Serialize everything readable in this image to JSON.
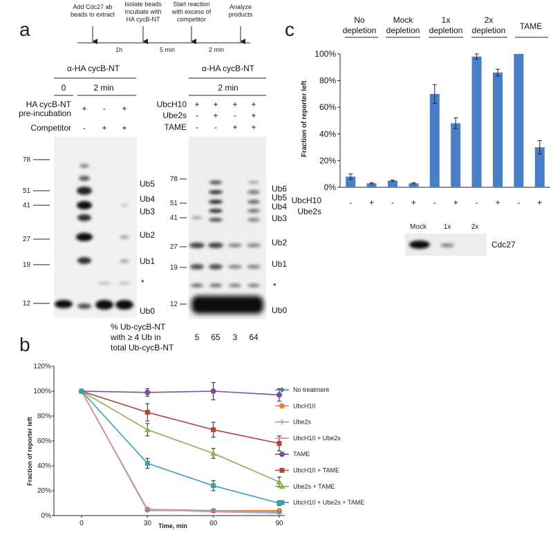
{
  "panels": {
    "a": "a",
    "b": "b",
    "c": "c"
  },
  "timeline": {
    "steps": [
      "Add Cdc27 ab",
      "beads to extract",
      "Isolate beads",
      "Incubate with",
      "HA cycB-NT",
      "Start reaction",
      "with excess of",
      "competitor",
      "Analyze",
      "products"
    ],
    "intervals": [
      "1h",
      "5 min",
      "2 min"
    ]
  },
  "blot_left": {
    "title": "α-HA cycB-NT",
    "time_labels": [
      "0",
      "2 min"
    ],
    "row_labels": [
      "HA cycB-NT",
      "pre-incubation",
      "Competitor"
    ],
    "row_preinc": [
      "+",
      "-",
      "+"
    ],
    "row_comp": [
      "-",
      "+",
      "+"
    ],
    "mw": [
      "78",
      "51",
      "41",
      "27",
      "19",
      "12"
    ],
    "ub": [
      "Ub5",
      "Ub4",
      "Ub3",
      "Ub2",
      "Ub1",
      "*",
      "Ub0"
    ]
  },
  "blot_right": {
    "title": "α-HA cycB-NT",
    "time_label": "2 min",
    "row_labels": [
      "UbcH10",
      "Ube2s",
      "TAME"
    ],
    "row_ubch10": [
      "+",
      "+",
      "+",
      "+"
    ],
    "row_ube2s": [
      "-",
      "+",
      "-",
      "+"
    ],
    "row_tame": [
      "-",
      "-",
      "+",
      "+"
    ],
    "mw": [
      "78",
      "51",
      "41",
      "27",
      "19",
      "12"
    ],
    "ub": [
      "Ub6",
      "Ub5",
      "Ub4",
      "Ub3",
      "Ub2",
      "Ub1",
      "*",
      "Ub0"
    ],
    "pct_label": [
      "% Ub-cycB-NT",
      "with ≥ 4 Ub in",
      "total Ub-cycB-NT"
    ],
    "pct_values": [
      "5",
      "65",
      "3",
      "64"
    ]
  },
  "panel_c": {
    "groups": [
      "No",
      "depletion",
      "Mock",
      "depletion",
      "1x",
      "depletion",
      "2x",
      "depletion",
      "TAME"
    ],
    "ylabel": "Fraction of reporter left",
    "row_labels": [
      "UbcH10",
      "Ube2s"
    ],
    "signs": [
      "-",
      "+",
      "-",
      "+",
      "-",
      "+",
      "-",
      "+",
      "-",
      "+"
    ],
    "blot_lanes": [
      "Mock",
      "1x",
      "2x"
    ],
    "blot_label": "Cdc27"
  },
  "chart_data": [
    {
      "type": "bar",
      "categories": [
        "No depletion -",
        "No depletion +",
        "Mock depletion -",
        "Mock depletion +",
        "1x depletion -",
        "1x depletion +",
        "2x depletion -",
        "2x depletion +",
        "TAME -",
        "TAME +"
      ],
      "values": [
        8,
        3,
        5,
        3,
        70,
        48,
        98,
        86,
        100,
        30
      ],
      "errors": [
        2,
        0.5,
        0.5,
        0.5,
        7,
        4,
        2,
        2.5,
        0,
        5
      ],
      "ylabel": "Fraction of reporter left",
      "ylim": [
        0,
        100
      ],
      "yticks": [
        "0%",
        "20%",
        "40%",
        "60%",
        "80%",
        "100%"
      ],
      "color": "#4a7ec5"
    },
    {
      "type": "line",
      "x": [
        0,
        30,
        60,
        90
      ],
      "xlabel": "Time, min",
      "ylabel": "Fraction of reporter left",
      "ylim": [
        0,
        120
      ],
      "yticks": [
        "0%",
        "20%",
        "40%",
        "60%",
        "80%",
        "100%",
        "120%"
      ],
      "legend": "right",
      "series": [
        {
          "name": "No treatment",
          "values": [
            100,
            5,
            4,
            3
          ],
          "errors": [
            0,
            0.5,
            0.5,
            0.5
          ],
          "color": "#3d7fbf",
          "marker": "diamond"
        },
        {
          "name": "UbcH10",
          "values": [
            100,
            5,
            4,
            4
          ],
          "errors": [
            0,
            0.5,
            0.5,
            0.5
          ],
          "color": "#e8833a",
          "marker": "circle"
        },
        {
          "name": "Ube2s",
          "values": [
            100,
            4,
            4,
            3
          ],
          "errors": [
            0,
            0.5,
            0.5,
            0.5
          ],
          "color": "#8fa6cf",
          "marker": "plus"
        },
        {
          "name": "UbcH10 + Ube2s",
          "values": [
            100,
            5,
            3,
            2
          ],
          "errors": [
            0,
            0.5,
            0.5,
            0.5
          ],
          "color": "#e09090",
          "marker": "dash"
        },
        {
          "name": "TAME",
          "values": [
            100,
            99,
            100,
            97
          ],
          "errors": [
            0,
            3,
            7,
            5
          ],
          "color": "#7b4fa0",
          "marker": "circle"
        },
        {
          "name": "UbcH10 + TAME",
          "values": [
            100,
            83,
            69,
            58
          ],
          "errors": [
            0,
            7,
            6,
            6
          ],
          "color": "#b8403a",
          "marker": "square"
        },
        {
          "name": "Ube2s + TAME",
          "values": [
            100,
            69,
            50,
            27
          ],
          "errors": [
            0,
            5,
            4,
            4
          ],
          "color": "#8db04a",
          "marker": "triangle"
        },
        {
          "name": "UbcH10 + Ube2s + TAME",
          "values": [
            100,
            42,
            24,
            10
          ],
          "errors": [
            0,
            4,
            4,
            2
          ],
          "color": "#3aa0b8",
          "marker": "square"
        }
      ]
    }
  ]
}
